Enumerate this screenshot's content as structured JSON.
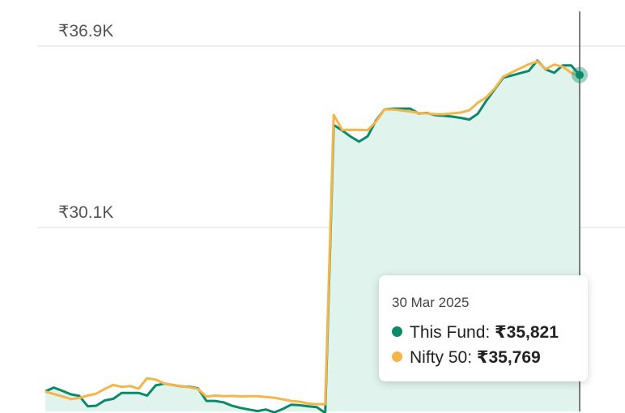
{
  "colors": {
    "fund": "#0b8a6b",
    "fund_fill": "#e0f3ec",
    "index": "#f4b54a",
    "grid": "#dddddd",
    "axis": "#555555"
  },
  "chart_data": {
    "type": "line",
    "yticks": [
      "₹36.9K",
      "₹30.1K"
    ],
    "ytick_values": [
      36900,
      30100
    ],
    "ylim": [
      23200,
      38600
    ],
    "grid": true,
    "tooltip": {
      "date": "30 Mar 2025",
      "items": [
        {
          "name": "This Fund",
          "label": "This Fund: ",
          "value": "₹35,821"
        },
        {
          "name": "Nifty 50",
          "label": "Nifty 50: ",
          "value": "₹35,769"
        }
      ]
    },
    "series": [
      {
        "name": "This Fund",
        "values": [
          23960,
          24100,
          23980,
          23850,
          23790,
          23400,
          23420,
          23620,
          23680,
          23900,
          23900,
          23900,
          23800,
          24180,
          24250,
          24200,
          24150,
          24130,
          24070,
          23600,
          23600,
          23550,
          23420,
          23340,
          23280,
          23220,
          23280,
          23170,
          23300,
          23460,
          23440,
          23400,
          23370,
          23150,
          33950,
          33740,
          33510,
          33320,
          33520,
          34120,
          34530,
          34560,
          34560,
          34560,
          34380,
          34400,
          34310,
          34290,
          34260,
          34210,
          34150,
          34370,
          34860,
          35290,
          35720,
          35800,
          35890,
          35970,
          36360,
          36030,
          35900,
          36180,
          36180,
          35820
        ]
      },
      {
        "name": "Nifty 50",
        "values": [
          23950,
          23860,
          23770,
          23670,
          23710,
          23800,
          23870,
          24050,
          24200,
          24130,
          24160,
          24060,
          24450,
          24400,
          24260,
          24200,
          24160,
          24110,
          24050,
          23760,
          23800,
          23780,
          23790,
          23770,
          23780,
          23780,
          23750,
          23720,
          23660,
          23600,
          23570,
          23500,
          23480,
          23480,
          34320,
          33760,
          33760,
          33760,
          33750,
          34080,
          34530,
          34530,
          34490,
          34450,
          34400,
          34380,
          34350,
          34350,
          34380,
          34410,
          34500,
          34780,
          34980,
          35320,
          35760,
          35920,
          36070,
          36220,
          36330,
          36040,
          36210,
          36130,
          35900,
          35770
        ]
      }
    ]
  }
}
